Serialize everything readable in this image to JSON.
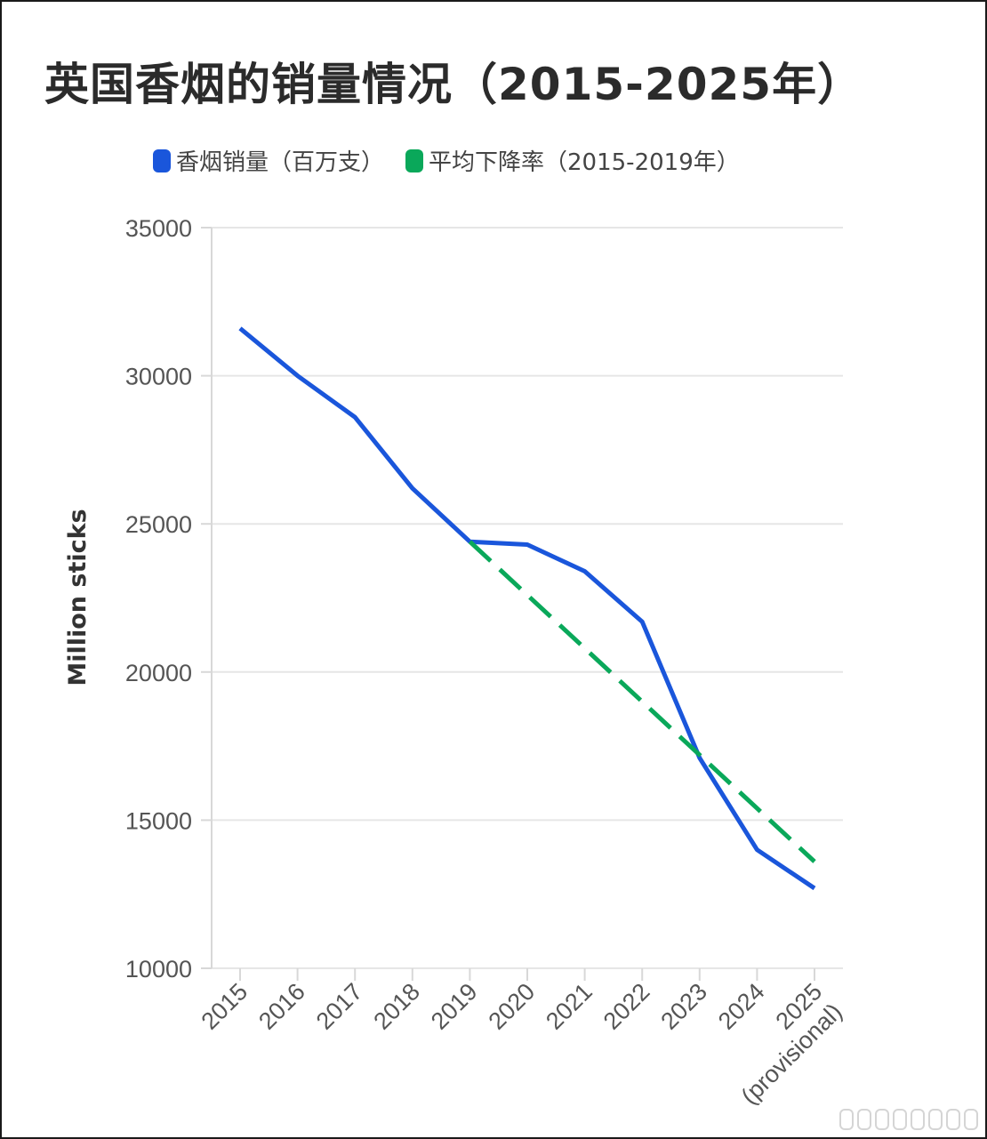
{
  "chart_data": {
    "type": "line",
    "title": "英国香烟的销量情况（2015-2025年）",
    "ylabel": "Million sticks",
    "xlabel": "",
    "ylim": [
      10000,
      35000
    ],
    "yticks": [
      10000,
      15000,
      20000,
      25000,
      30000,
      35000
    ],
    "grid": true,
    "legend_placement": "top",
    "categories": [
      "2015",
      "2016",
      "2017",
      "2018",
      "2019",
      "2020",
      "2021",
      "2022",
      "2023",
      "2024",
      "2025\n(provisional)"
    ],
    "series": [
      {
        "name": "香烟销量（百万支）",
        "color": "#1a56db",
        "style": "solid",
        "values": [
          31600,
          30000,
          28600,
          26200,
          24400,
          24300,
          23400,
          21700,
          17100,
          14000,
          12700
        ]
      },
      {
        "name": "平均下降率（2015-2019年）",
        "color": "#0aa85a",
        "style": "dashed",
        "values": [
          null,
          null,
          null,
          null,
          24400,
          22600,
          20800,
          19000,
          17200,
          15400,
          13600
        ]
      }
    ]
  }
}
